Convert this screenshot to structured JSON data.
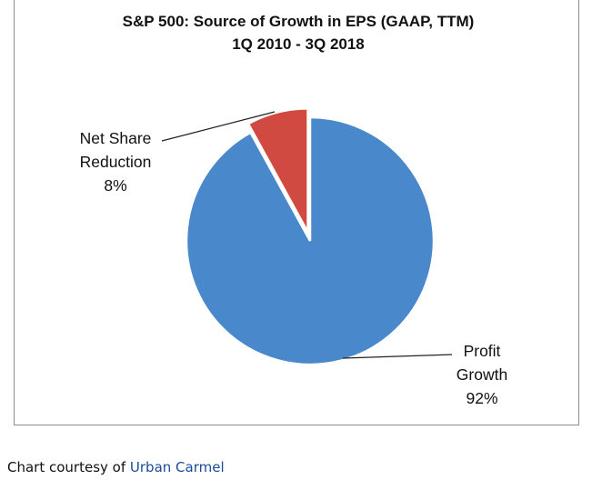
{
  "chart_data": {
    "type": "pie",
    "title": "S&P 500: Source of Growth in EPS (GAAP, TTM)",
    "subtitle": "1Q 2010 - 3Q 2018",
    "slices": [
      {
        "label_lines": [
          "Profit",
          "Growth",
          "92%"
        ],
        "name": "Profit Growth",
        "value": 92,
        "color": "#4a88cc",
        "exploded": false
      },
      {
        "label_lines": [
          "Net Share",
          "Reduction",
          "8%"
        ],
        "name": "Net Share Reduction",
        "value": 8,
        "color": "#d04a42",
        "exploded": true
      }
    ],
    "start": "12 o'clock",
    "direction": "clockwise, Profit Growth first",
    "legend": "none (data labels with leader lines)"
  },
  "caption": {
    "prefix": "Chart courtesy of",
    "link_text": "Urban Carmel"
  }
}
